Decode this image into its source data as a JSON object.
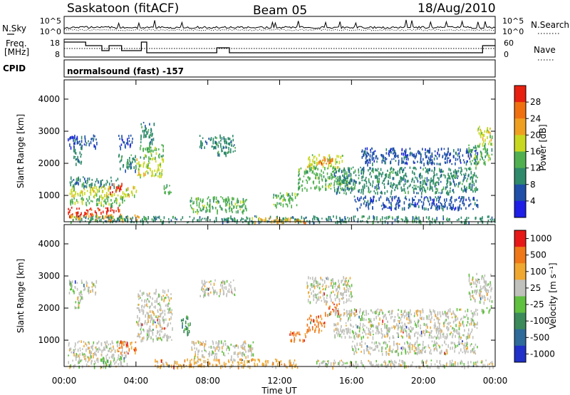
{
  "header": {
    "station": "Saskatoon (fitACF)",
    "beam": "Beam 05",
    "date": "18/Aug/2010"
  },
  "noise_panel": {
    "left_label": "N.Sky",
    "right_label": "N.Search",
    "left_ticks": [
      "10^5",
      "10^0"
    ],
    "right_ticks": [
      "10^5",
      "10^0"
    ]
  },
  "freq_panel": {
    "left_label_1": "Freq.",
    "left_label_2": "[MHz]",
    "left_ticks": [
      "18",
      "8"
    ],
    "right_label": "Nave",
    "right_ticks": [
      "60",
      "0"
    ],
    "cpid_label": "CPID",
    "cpid_text": "normalsound (fast) -157"
  },
  "colors": {
    "power": [
      "#1f1fe8",
      "#1f4fa8",
      "#2e8a6a",
      "#50b050",
      "#c8d820",
      "#f0a020",
      "#f07010",
      "#e82010"
    ],
    "velocity": [
      "#2030c8",
      "#2e6a9a",
      "#3a8a5a",
      "#60c040",
      "#c0c0bc",
      "#f0a830",
      "#f07818",
      "#e81818"
    ]
  },
  "x_axis": {
    "label": "Time UT",
    "ticks": [
      "00:00",
      "04:00",
      "08:00",
      "12:00",
      "16:00",
      "20:00",
      "00:00"
    ]
  },
  "chart_data": [
    {
      "type": "heatmap",
      "name": "power",
      "ylabel": "Slant Range [km]",
      "yticks": [
        "4000",
        "3000",
        "2000",
        "1000"
      ],
      "ylim": [
        180,
        4600
      ],
      "xlim": [
        0,
        24
      ],
      "colorbar_label": "Power [dB]",
      "colorbar_ticks": [
        "28",
        "24",
        "20",
        "16",
        "12",
        "8",
        "4"
      ],
      "colorbar_range": [
        0,
        32
      ],
      "regions": [
        {
          "t0": 0.2,
          "t1": 3.2,
          "r0": 350,
          "r1": 650,
          "level": 7
        },
        {
          "t0": 0.2,
          "t1": 4.2,
          "r0": 250,
          "r1": 420,
          "level": 5
        },
        {
          "t0": 0.3,
          "t1": 3.5,
          "r0": 700,
          "r1": 1000,
          "level": 3
        },
        {
          "t0": 0.3,
          "t1": 4.0,
          "r0": 1000,
          "r1": 1300,
          "level": 4
        },
        {
          "t0": 2.5,
          "t1": 3.2,
          "r0": 1100,
          "r1": 1400,
          "level": 7
        },
        {
          "t0": 0.3,
          "t1": 3.0,
          "r0": 1300,
          "r1": 1600,
          "level": 2
        },
        {
          "t0": 0.2,
          "t1": 1.8,
          "r0": 2500,
          "r1": 2900,
          "level": 1
        },
        {
          "t0": 0.5,
          "t1": 1.0,
          "r0": 2000,
          "r1": 2500,
          "level": 2
        },
        {
          "t0": 3.0,
          "t1": 4.0,
          "r0": 1800,
          "r1": 2300,
          "level": 2
        },
        {
          "t0": 3.0,
          "t1": 3.8,
          "r0": 2500,
          "r1": 2900,
          "level": 1
        },
        {
          "t0": 4.0,
          "t1": 5.5,
          "r0": 1600,
          "r1": 2200,
          "level": 4
        },
        {
          "t0": 4.2,
          "t1": 5.5,
          "r0": 2200,
          "r1": 2600,
          "level": 3
        },
        {
          "t0": 4.2,
          "t1": 5.0,
          "r0": 2600,
          "r1": 3300,
          "level": 2
        },
        {
          "t0": 5.5,
          "t1": 6.0,
          "r0": 1100,
          "r1": 1400,
          "level": 3
        },
        {
          "t0": 7.0,
          "t1": 10.2,
          "r0": 500,
          "r1": 1000,
          "level": 3
        },
        {
          "t0": 7.5,
          "t1": 9.5,
          "r0": 2500,
          "r1": 2900,
          "level": 2
        },
        {
          "t0": 8.5,
          "t1": 9.5,
          "r0": 2300,
          "r1": 2600,
          "level": 2
        },
        {
          "t0": 0.2,
          "t1": 24.0,
          "r0": 180,
          "r1": 380,
          "level": 2
        },
        {
          "t0": 10.0,
          "t1": 13.5,
          "r0": 180,
          "r1": 330,
          "level": 5
        },
        {
          "t0": 11.5,
          "t1": 13.0,
          "r0": 700,
          "r1": 1100,
          "level": 3
        },
        {
          "t0": 13.0,
          "t1": 16.0,
          "r0": 1200,
          "r1": 1900,
          "level": 3
        },
        {
          "t0": 13.5,
          "t1": 15.5,
          "r0": 1900,
          "r1": 2300,
          "level": 4
        },
        {
          "t0": 14.0,
          "t1": 15.0,
          "r0": 2000,
          "r1": 2200,
          "level": 6
        },
        {
          "t0": 15.0,
          "t1": 23.0,
          "r0": 1500,
          "r1": 1900,
          "level": 2
        },
        {
          "t0": 15.0,
          "t1": 23.0,
          "r0": 1100,
          "r1": 1500,
          "level": 2
        },
        {
          "t0": 16.0,
          "t1": 23.0,
          "r0": 600,
          "r1": 1000,
          "level": 1
        },
        {
          "t0": 16.5,
          "t1": 23.0,
          "r0": 2000,
          "r1": 2500,
          "level": 1
        },
        {
          "t0": 22.5,
          "t1": 23.8,
          "r0": 2000,
          "r1": 2600,
          "level": 3
        },
        {
          "t0": 23.0,
          "t1": 23.8,
          "r0": 2600,
          "r1": 3200,
          "level": 4
        }
      ]
    },
    {
      "type": "heatmap",
      "name": "velocity",
      "ylabel": "Slant Range [km]",
      "yticks": [
        "4000",
        "3000",
        "2000",
        "1000"
      ],
      "ylim": [
        180,
        4600
      ],
      "xlim": [
        0,
        24
      ],
      "colorbar_label": "Velocity [m s⁻¹]",
      "colorbar_ticks": [
        "1000",
        "500",
        "100",
        "25",
        "-25",
        "-100",
        "-500",
        "-1000"
      ],
      "regions": [
        {
          "t0": 0.2,
          "t1": 3.5,
          "r0": 200,
          "r1": 1000,
          "level": 4
        },
        {
          "t0": 0.2,
          "t1": 1.8,
          "r0": 2500,
          "r1": 2900,
          "level": 4
        },
        {
          "t0": 0.5,
          "t1": 1.0,
          "r0": 2000,
          "r1": 2500,
          "level": 4
        },
        {
          "t0": 2.0,
          "t1": 2.6,
          "r0": 180,
          "r1": 500,
          "level": 3
        },
        {
          "t0": 3.0,
          "t1": 4.0,
          "r0": 600,
          "r1": 1000,
          "level": 6
        },
        {
          "t0": 4.0,
          "t1": 6.0,
          "r0": 1000,
          "r1": 2600,
          "level": 4
        },
        {
          "t0": 6.5,
          "t1": 7.0,
          "r0": 1200,
          "r1": 1800,
          "level": 2
        },
        {
          "t0": 7.0,
          "t1": 10.5,
          "r0": 500,
          "r1": 1000,
          "level": 4
        },
        {
          "t0": 7.5,
          "t1": 9.5,
          "r0": 2400,
          "r1": 2900,
          "level": 4
        },
        {
          "t0": 5.0,
          "t1": 13.0,
          "r0": 180,
          "r1": 450,
          "level": 5
        },
        {
          "t0": 12.5,
          "t1": 13.5,
          "r0": 1000,
          "r1": 1300,
          "level": 6
        },
        {
          "t0": 13.5,
          "t1": 14.5,
          "r0": 1300,
          "r1": 1800,
          "level": 6
        },
        {
          "t0": 14.5,
          "t1": 15.3,
          "r0": 1800,
          "r1": 2200,
          "level": 6
        },
        {
          "t0": 13.5,
          "t1": 16.0,
          "r0": 2200,
          "r1": 3000,
          "level": 4
        },
        {
          "t0": 15.0,
          "t1": 23.0,
          "r0": 1100,
          "r1": 2000,
          "level": 4
        },
        {
          "t0": 16.0,
          "t1": 23.0,
          "r0": 600,
          "r1": 1000,
          "level": 4
        },
        {
          "t0": 14.0,
          "t1": 24.0,
          "r0": 180,
          "r1": 400,
          "level": 4
        },
        {
          "t0": 22.5,
          "t1": 23.8,
          "r0": 2200,
          "r1": 3100,
          "level": 4
        },
        {
          "t0": 23.2,
          "t1": 23.8,
          "r0": 1900,
          "r1": 2100,
          "level": 3
        }
      ]
    }
  ]
}
